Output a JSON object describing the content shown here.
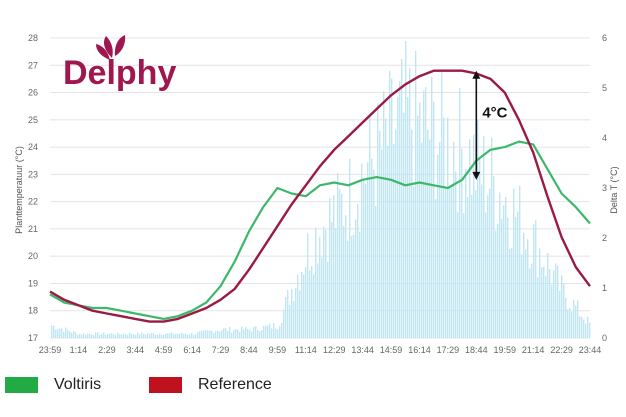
{
  "logo": {
    "text": "Delphy"
  },
  "annotation": {
    "text": "4°C"
  },
  "colors": {
    "voltiris": "#3db86a",
    "reference": "#9b1a44",
    "voltiris_swatch": "#22aa44",
    "reference_swatch": "#c0111f",
    "bars": "#bfe6f2",
    "logo": "#a0174f"
  },
  "legend": [
    {
      "name": "Voltiris",
      "color_key": "voltiris_swatch"
    },
    {
      "name": "Reference",
      "color_key": "reference_swatch"
    }
  ],
  "chart_data": {
    "type": "line",
    "title": "",
    "xlabel": "",
    "ylabel": "Planttemperatuur (°C)",
    "y2label": "Delta T (°C)",
    "ylim": [
      17,
      28
    ],
    "y2lim": [
      0,
      6
    ],
    "grid": true,
    "legend_position": "bottom-left",
    "x_tick_labels": [
      "23:59",
      "1:14",
      "2:29",
      "3:44",
      "4:59",
      "6:14",
      "7:29",
      "8:44",
      "9:59",
      "11:14",
      "12:29",
      "13:44",
      "14:59",
      "16:14",
      "17:29",
      "18:44",
      "19:59",
      "21:14",
      "22:29",
      "23:44"
    ],
    "y_ticks": [
      17,
      18,
      19,
      20,
      21,
      22,
      23,
      24,
      25,
      26,
      27,
      28
    ],
    "y2_ticks": [
      0,
      1,
      2,
      3,
      4,
      5,
      6
    ],
    "series": [
      {
        "name": "Voltiris",
        "axis": "left",
        "x": [
          0,
          0.5,
          1,
          1.5,
          2,
          2.5,
          3,
          3.5,
          4,
          4.5,
          5,
          5.5,
          6,
          6.5,
          7,
          7.5,
          8,
          8.5,
          9,
          9.5,
          10,
          10.5,
          11,
          11.5,
          12,
          12.5,
          13,
          13.5,
          14,
          14.5,
          15,
          15.5,
          16,
          16.5,
          17,
          17.5,
          18,
          18.5,
          19
        ],
        "values": [
          18.6,
          18.3,
          18.2,
          18.1,
          18.1,
          18.0,
          17.9,
          17.8,
          17.7,
          17.8,
          18.0,
          18.3,
          18.9,
          19.8,
          20.9,
          21.8,
          22.5,
          22.3,
          22.2,
          22.6,
          22.7,
          22.6,
          22.8,
          22.9,
          22.8,
          22.6,
          22.7,
          22.6,
          22.5,
          22.8,
          23.5,
          23.9,
          24.0,
          24.2,
          24.1,
          23.2,
          22.3,
          21.8,
          21.2
        ]
      },
      {
        "name": "Reference",
        "axis": "left",
        "x": [
          0,
          0.5,
          1,
          1.5,
          2,
          2.5,
          3,
          3.5,
          4,
          4.5,
          5,
          5.5,
          6,
          6.5,
          7,
          7.5,
          8,
          8.5,
          9,
          9.5,
          10,
          10.5,
          11,
          11.5,
          12,
          12.5,
          13,
          13.5,
          14,
          14.5,
          15,
          15.5,
          16,
          16.5,
          17,
          17.5,
          18,
          18.5,
          19
        ],
        "values": [
          18.7,
          18.4,
          18.2,
          18.0,
          17.9,
          17.8,
          17.7,
          17.6,
          17.6,
          17.7,
          17.9,
          18.1,
          18.4,
          18.8,
          19.5,
          20.3,
          21.1,
          21.9,
          22.6,
          23.3,
          23.9,
          24.4,
          24.9,
          25.4,
          25.9,
          26.3,
          26.6,
          26.8,
          26.8,
          26.8,
          26.7,
          26.5,
          26.0,
          25.0,
          23.8,
          22.2,
          20.7,
          19.6,
          18.9
        ]
      },
      {
        "name": "Delta T",
        "axis": "right",
        "type": "bar",
        "x": [
          0,
          1,
          2,
          3,
          4,
          5,
          6,
          7,
          8,
          8.5,
          9,
          9.5,
          10,
          10.5,
          11,
          11.5,
          12,
          12.5,
          13,
          13.5,
          14,
          14.5,
          15,
          15.5,
          16,
          16.5,
          17,
          17.5,
          18,
          18.5,
          19
        ],
        "values": [
          0.3,
          0.1,
          0.1,
          0.1,
          0.1,
          0.1,
          0.2,
          0.2,
          0.3,
          1.2,
          2.0,
          2.6,
          2.9,
          3.3,
          3.9,
          4.3,
          4.8,
          5.2,
          5.0,
          4.8,
          4.6,
          4.4,
          4.0,
          3.7,
          3.3,
          2.8,
          2.3,
          1.7,
          1.1,
          0.7,
          0.3
        ]
      }
    ],
    "annotations": [
      {
        "text": "4°C",
        "x": 15,
        "y_from": 22.8,
        "y_to": 26.8
      }
    ]
  }
}
